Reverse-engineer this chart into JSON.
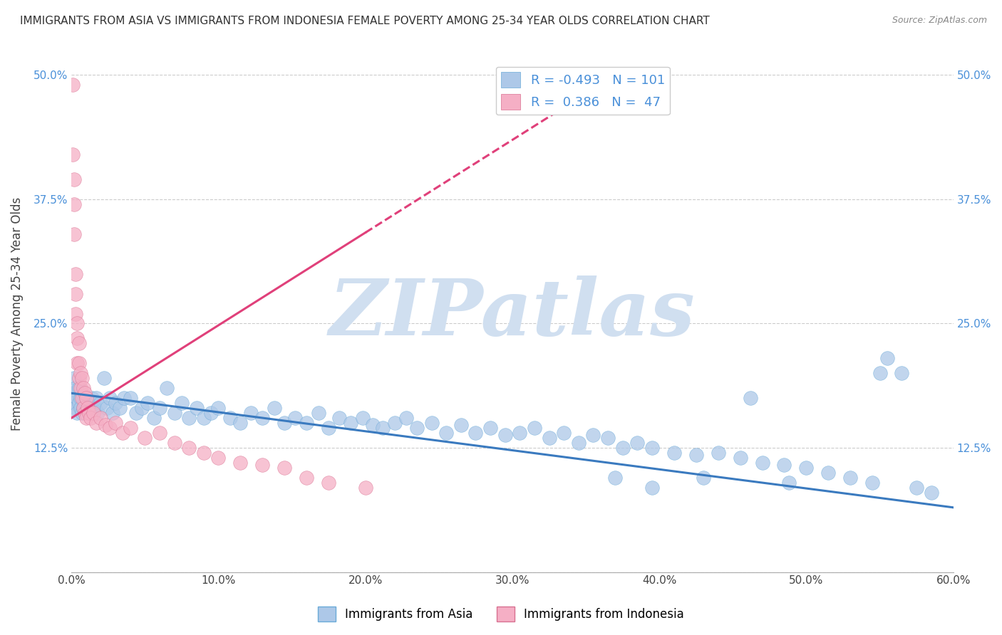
{
  "title": "IMMIGRANTS FROM ASIA VS IMMIGRANTS FROM INDONESIA FEMALE POVERTY AMONG 25-34 YEAR OLDS CORRELATION CHART",
  "source": "Source: ZipAtlas.com",
  "ylabel": "Female Poverty Among 25-34 Year Olds",
  "xlim": [
    0.0,
    0.6
  ],
  "ylim": [
    0.0,
    0.52
  ],
  "xticks": [
    0.0,
    0.1,
    0.2,
    0.3,
    0.4,
    0.5,
    0.6
  ],
  "xticklabels": [
    "0.0%",
    "10.0%",
    "20.0%",
    "30.0%",
    "40.0%",
    "50.0%",
    "60.0%"
  ],
  "yticks": [
    0.0,
    0.125,
    0.25,
    0.375,
    0.5
  ],
  "yticklabels": [
    "",
    "12.5%",
    "25.0%",
    "37.5%",
    "50.0%"
  ],
  "legend_R1": "-0.493",
  "legend_N1": "101",
  "legend_R2": "0.386",
  "legend_N2": "47",
  "color_asia": "#adc8e8",
  "color_indonesia": "#f5afc5",
  "trendline_asia_color": "#3a7abf",
  "trendline_indonesia_color": "#e0407a",
  "watermark": "ZIPatlas",
  "watermark_color": "#d0dff0",
  "background_color": "#ffffff",
  "grid_color": "#cccccc",
  "asia_x": [
    0.001,
    0.002,
    0.002,
    0.003,
    0.003,
    0.004,
    0.004,
    0.005,
    0.005,
    0.006,
    0.006,
    0.007,
    0.007,
    0.008,
    0.008,
    0.009,
    0.01,
    0.011,
    0.012,
    0.013,
    0.014,
    0.015,
    0.016,
    0.017,
    0.018,
    0.02,
    0.022,
    0.024,
    0.026,
    0.028,
    0.03,
    0.033,
    0.036,
    0.04,
    0.044,
    0.048,
    0.052,
    0.056,
    0.06,
    0.065,
    0.07,
    0.075,
    0.08,
    0.085,
    0.09,
    0.095,
    0.1,
    0.108,
    0.115,
    0.122,
    0.13,
    0.138,
    0.145,
    0.152,
    0.16,
    0.168,
    0.175,
    0.182,
    0.19,
    0.198,
    0.205,
    0.212,
    0.22,
    0.228,
    0.235,
    0.245,
    0.255,
    0.265,
    0.275,
    0.285,
    0.295,
    0.305,
    0.315,
    0.325,
    0.335,
    0.345,
    0.355,
    0.365,
    0.375,
    0.385,
    0.395,
    0.41,
    0.425,
    0.44,
    0.455,
    0.47,
    0.485,
    0.5,
    0.515,
    0.53,
    0.545,
    0.555,
    0.565,
    0.575,
    0.585,
    0.55,
    0.488,
    0.462,
    0.43,
    0.395,
    0.37
  ],
  "asia_y": [
    0.18,
    0.17,
    0.195,
    0.165,
    0.185,
    0.175,
    0.16,
    0.185,
    0.17,
    0.175,
    0.165,
    0.18,
    0.16,
    0.175,
    0.165,
    0.17,
    0.175,
    0.165,
    0.17,
    0.16,
    0.175,
    0.17,
    0.165,
    0.175,
    0.16,
    0.17,
    0.195,
    0.165,
    0.175,
    0.16,
    0.17,
    0.165,
    0.175,
    0.175,
    0.16,
    0.165,
    0.17,
    0.155,
    0.165,
    0.185,
    0.16,
    0.17,
    0.155,
    0.165,
    0.155,
    0.16,
    0.165,
    0.155,
    0.15,
    0.16,
    0.155,
    0.165,
    0.15,
    0.155,
    0.15,
    0.16,
    0.145,
    0.155,
    0.15,
    0.155,
    0.148,
    0.145,
    0.15,
    0.155,
    0.145,
    0.15,
    0.14,
    0.148,
    0.14,
    0.145,
    0.138,
    0.14,
    0.145,
    0.135,
    0.14,
    0.13,
    0.138,
    0.135,
    0.125,
    0.13,
    0.125,
    0.12,
    0.118,
    0.12,
    0.115,
    0.11,
    0.108,
    0.105,
    0.1,
    0.095,
    0.09,
    0.215,
    0.2,
    0.085,
    0.08,
    0.2,
    0.09,
    0.175,
    0.095,
    0.085,
    0.095
  ],
  "indonesia_x": [
    0.001,
    0.001,
    0.002,
    0.002,
    0.002,
    0.003,
    0.003,
    0.003,
    0.004,
    0.004,
    0.004,
    0.005,
    0.005,
    0.005,
    0.006,
    0.006,
    0.007,
    0.007,
    0.008,
    0.008,
    0.009,
    0.009,
    0.01,
    0.01,
    0.011,
    0.012,
    0.013,
    0.015,
    0.017,
    0.02,
    0.023,
    0.026,
    0.03,
    0.035,
    0.04,
    0.05,
    0.06,
    0.07,
    0.08,
    0.09,
    0.1,
    0.115,
    0.13,
    0.145,
    0.16,
    0.175,
    0.2
  ],
  "indonesia_y": [
    0.49,
    0.42,
    0.395,
    0.37,
    0.34,
    0.3,
    0.28,
    0.26,
    0.25,
    0.235,
    0.21,
    0.23,
    0.21,
    0.195,
    0.2,
    0.185,
    0.195,
    0.175,
    0.185,
    0.165,
    0.18,
    0.16,
    0.175,
    0.155,
    0.165,
    0.16,
    0.155,
    0.16,
    0.15,
    0.155,
    0.148,
    0.145,
    0.15,
    0.14,
    0.145,
    0.135,
    0.14,
    0.13,
    0.125,
    0.12,
    0.115,
    0.11,
    0.108,
    0.105,
    0.095,
    0.09,
    0.085
  ],
  "indo_trendline_x0": 0.0,
  "indo_trendline_x1": 0.37,
  "indo_trendline_y0": 0.155,
  "indo_trendline_y1": 0.5,
  "indo_trendline_solid_x1": 0.2,
  "asia_trendline_y0": 0.18,
  "asia_trendline_y1": 0.065
}
